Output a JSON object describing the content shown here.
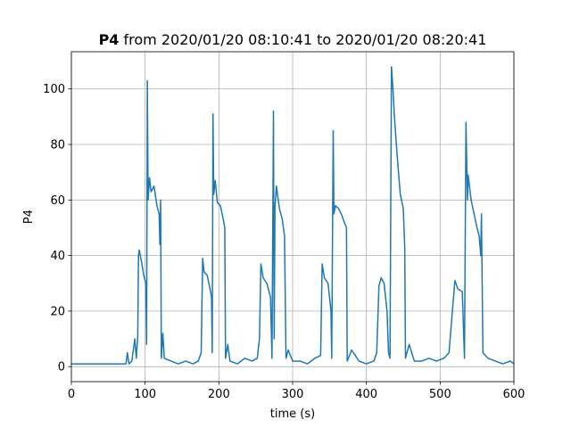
{
  "chart_data": {
    "type": "line",
    "title_bold": "P4",
    "title": "from 2020/01/20 08:10:41 to 2020/01/20 08:20:41",
    "xlabel": "time (s)",
    "ylabel": "P4",
    "xlim": [
      0,
      600
    ],
    "ylim": [
      -5.4,
      113.4
    ],
    "xticks": [
      0,
      100,
      200,
      300,
      400,
      500,
      600
    ],
    "yticks": [
      0,
      20,
      40,
      60,
      80,
      100
    ],
    "grid": true,
    "series": [
      {
        "color": "#1f77b4",
        "x": [
          0,
          10,
          20,
          30,
          40,
          50,
          60,
          70,
          74,
          76,
          78,
          82,
          86,
          88,
          90,
          91,
          92,
          95,
          98,
          101,
          102,
          103,
          104,
          106,
          108,
          112,
          116,
          119,
          120,
          121,
          122,
          124,
          126,
          135,
          145,
          155,
          165,
          172,
          176,
          178,
          180,
          184,
          188,
          190,
          191,
          192,
          193,
          195,
          198,
          202,
          206,
          208,
          209,
          212,
          215,
          225,
          235,
          245,
          252,
          255,
          257,
          260,
          265,
          270,
          272,
          274,
          275,
          276,
          278,
          282,
          286,
          289,
          291,
          294,
          300,
          310,
          320,
          330,
          338,
          340,
          343,
          348,
          352,
          353,
          355,
          356,
          358,
          362,
          366,
          370,
          373,
          374,
          380,
          390,
          400,
          410,
          414,
          417,
          420,
          424,
          428,
          430,
          432,
          434,
          436,
          438,
          442,
          446,
          450,
          452,
          453,
          458,
          465,
          475,
          485,
          495,
          505,
          512,
          520,
          524,
          530,
          533,
          535,
          537,
          538,
          542,
          546,
          550,
          553,
          555,
          556,
          558,
          565,
          575,
          585,
          595,
          600
        ],
        "values": [
          1,
          1,
          1,
          1,
          1,
          1,
          1,
          1,
          1,
          5,
          1,
          2,
          10,
          3,
          11,
          40,
          42,
          38,
          33,
          30,
          8,
          103,
          60,
          68,
          63,
          65,
          58,
          55,
          44,
          60,
          3,
          12,
          3,
          2,
          1,
          2,
          1,
          2,
          5,
          39,
          34,
          33,
          28,
          25,
          5,
          91,
          62,
          67,
          59,
          58,
          53,
          50,
          3,
          8,
          2,
          1,
          3,
          2,
          3,
          10,
          37,
          32,
          30,
          25,
          3,
          92,
          10,
          57,
          65,
          57,
          53,
          47,
          3,
          6,
          2,
          2,
          1,
          3,
          4,
          37,
          32,
          30,
          20,
          3,
          85,
          55,
          58,
          57,
          55,
          52,
          50,
          2,
          6,
          2,
          1,
          2,
          5,
          29,
          32,
          30,
          20,
          5,
          3,
          108,
          100,
          90,
          75,
          62,
          57,
          43,
          3,
          8,
          2,
          2,
          3,
          2,
          3,
          5,
          31,
          28,
          27,
          3,
          88,
          60,
          69,
          60,
          55,
          50,
          47,
          40,
          55,
          5,
          3,
          2,
          1,
          2,
          1
        ]
      }
    ]
  }
}
